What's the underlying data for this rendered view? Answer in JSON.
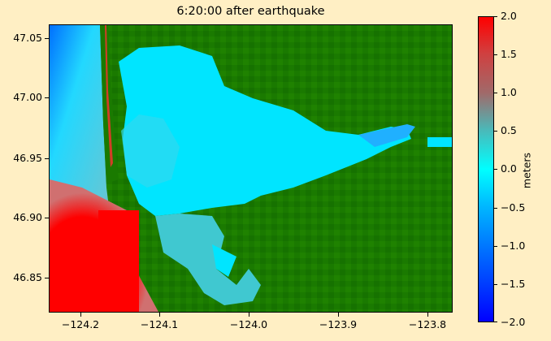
{
  "title": "6:20:00 after earthquake",
  "y_ticks": [
    "47.05",
    "47.00",
    "46.95",
    "46.90",
    "46.85"
  ],
  "x_ticks": [
    "−124.2",
    "−124.1",
    "−124.0",
    "−123.9",
    "−123.8"
  ],
  "colorbar": {
    "label": "meters",
    "ticks": [
      "2.0",
      "1.5",
      "1.0",
      "0.5",
      "0.0",
      "−0.5",
      "−1.0",
      "−1.5",
      "−2.0"
    ],
    "range": [
      -2.0,
      2.0
    ],
    "colors": {
      "max": "#ff0000",
      "mid": "#00ffff",
      "min": "#0000ff"
    }
  },
  "colors": {
    "land": "#1a7a00",
    "water": "#00e5ff",
    "background": "#ffefc4"
  }
}
